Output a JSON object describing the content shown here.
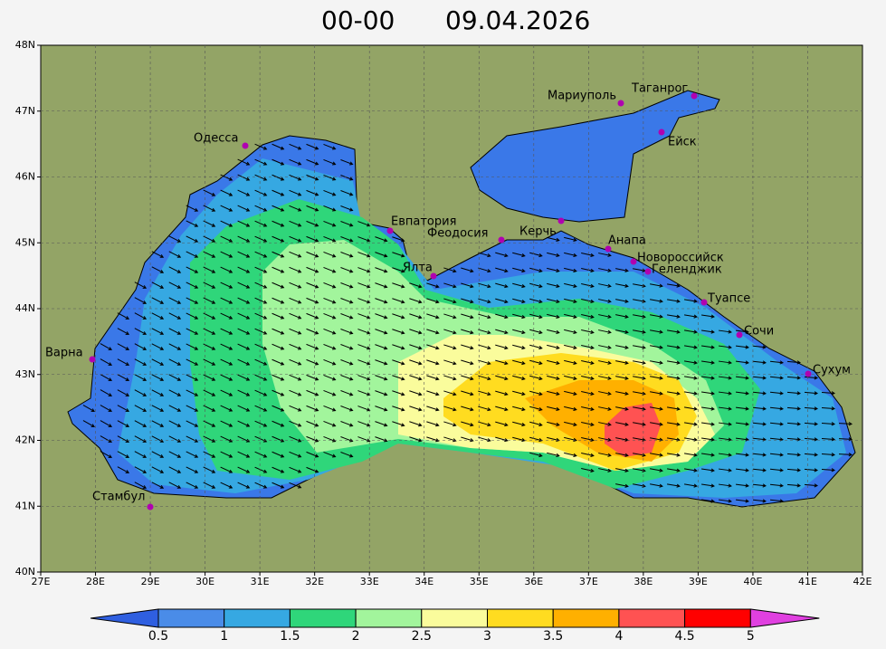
{
  "title": {
    "time": "00-00",
    "date": "09.04.2026"
  },
  "axes": {
    "x_labels": [
      "27E",
      "28E",
      "29E",
      "30E",
      "31E",
      "32E",
      "33E",
      "34E",
      "35E",
      "36E",
      "37E",
      "38E",
      "39E",
      "40E",
      "41E",
      "42E"
    ],
    "y_labels": [
      "48N",
      "47N",
      "46N",
      "45N",
      "44N",
      "43N",
      "42N",
      "41N",
      "40N"
    ]
  },
  "cities": [
    "Одесса",
    "Мариуполь",
    "Таганрог",
    "Ейск",
    "Евпатория",
    "Феодосия",
    "Керчь",
    "Анапа",
    "Новороссийск",
    "Геленджик",
    "Туапсе",
    "Сочи",
    "Сухум",
    "Ялта",
    "Варна",
    "Стамбул"
  ],
  "colorbar": {
    "labels": [
      "0.5",
      "1",
      "1.5",
      "2",
      "2.5",
      "3",
      "3.5",
      "4",
      "4.5",
      "5"
    ]
  }
}
